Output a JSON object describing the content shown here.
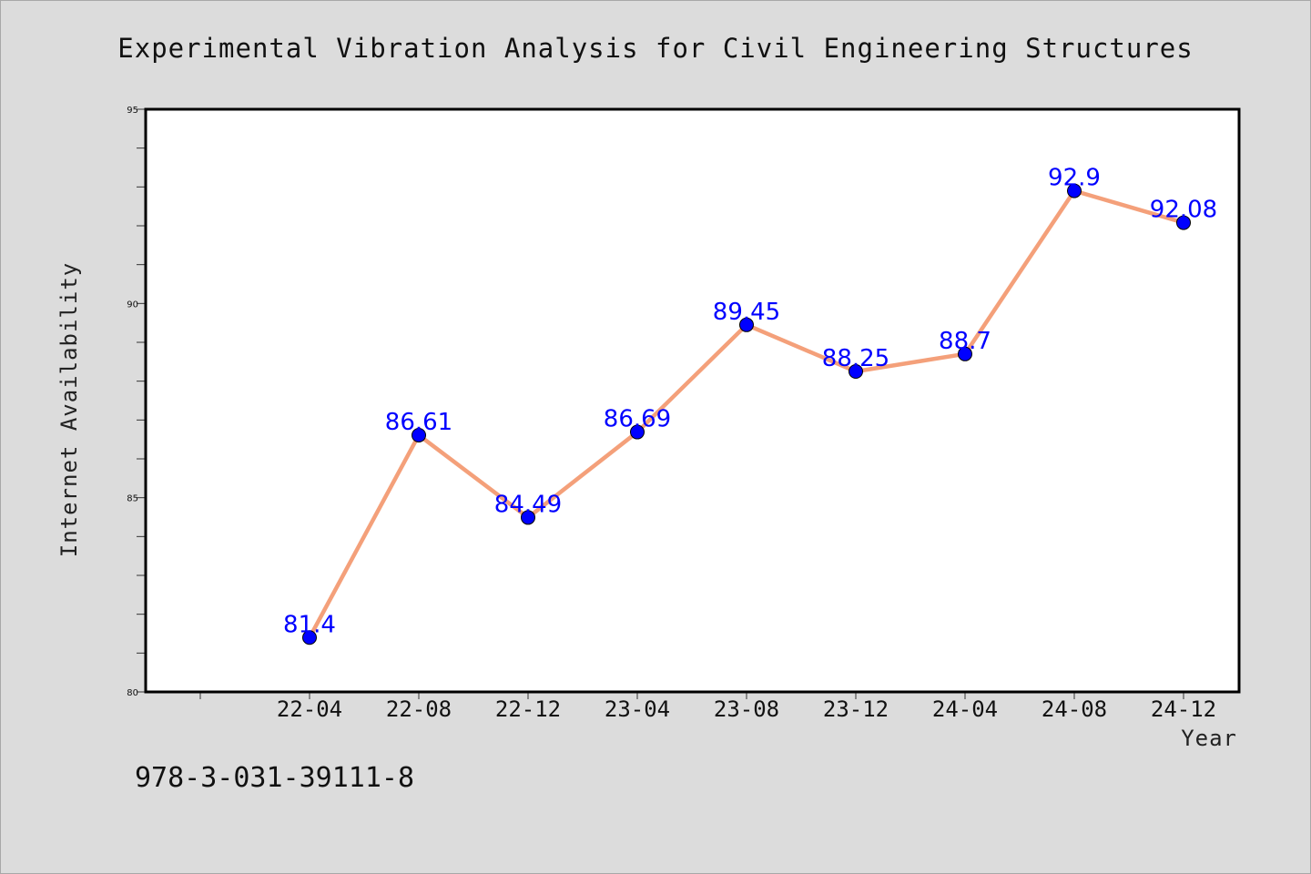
{
  "chart_data": {
    "type": "line",
    "title": "Experimental Vibration Analysis for Civil Engineering Structures",
    "xlabel": "Year",
    "ylabel": "Internet Availability",
    "categories": [
      "22-04",
      "22-08",
      "22-12",
      "23-04",
      "23-08",
      "23-12",
      "24-04",
      "24-08",
      "24-12"
    ],
    "series": [
      {
        "values": [
          81.4,
          86.61,
          84.49,
          86.69,
          89.45,
          88.25,
          88.7,
          92.9,
          92.08
        ]
      }
    ],
    "data_labels": [
      "81.4",
      "86.61",
      "84.49",
      "86.69",
      "89.45",
      "88.25",
      "88.7",
      "92.9",
      "92.08"
    ],
    "ylim": [
      80,
      95
    ],
    "y_ticks": [
      80,
      85,
      90,
      95
    ],
    "y_tick_labels": [
      "80",
      "85",
      "90",
      "95"
    ],
    "grid": false,
    "legend": "none",
    "colors": {
      "line": "#f4a07a",
      "marker": "#0000ff",
      "data_label": "#0000ff",
      "background": "#dcdcdc",
      "plot_background": "#ffffff"
    }
  },
  "footer": {
    "isbn": "978-3-031-39111-8"
  }
}
